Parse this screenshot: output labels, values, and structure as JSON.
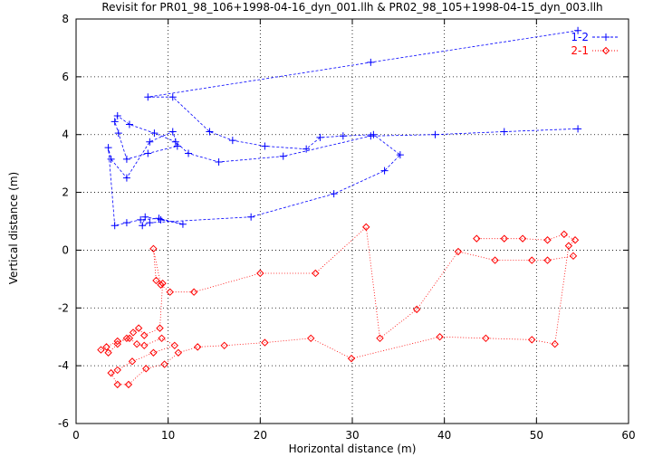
{
  "chart_data": {
    "type": "scatter",
    "title": "Revisit for PR01_98_106+1998-04-16_dyn_001.llh & PR02_98_105+1998-04-15_dyn_003.llh",
    "xlabel": "Horizontal distance (m)",
    "ylabel": "Vertical distance (m)",
    "xlim": [
      0,
      60
    ],
    "ylim": [
      -6,
      8
    ],
    "xticks": [
      "0",
      "10",
      "20",
      "30",
      "40",
      "50",
      "60"
    ],
    "yticks": [
      "-6",
      "-4",
      "-2",
      "0",
      "2",
      "4",
      "6",
      "8"
    ],
    "grid": true,
    "legend_position": "top-right",
    "series": [
      {
        "name": "1-2",
        "color": "#0000ff",
        "marker": "plus",
        "line": "dashed",
        "x": [
          54.5,
          32,
          7.8,
          10.5,
          14.5,
          17,
          20.5,
          25,
          26.5,
          29,
          32.3,
          35.2,
          33.5,
          28,
          19,
          8,
          7.2,
          7.5,
          9.2,
          11.6,
          9,
          7,
          5.5,
          4.2,
          3.5,
          3.8,
          5.5,
          8,
          10.5,
          11,
          7.8,
          5.5,
          4.6,
          4.2,
          4.5,
          5.8,
          8.5,
          10.8,
          12.2,
          15.5,
          22.5,
          32,
          39,
          46.5,
          54.5
        ],
        "y": [
          7.6,
          6.5,
          5.3,
          5.3,
          4.1,
          3.8,
          3.6,
          3.5,
          3.9,
          3.95,
          4.0,
          3.3,
          2.75,
          1.95,
          1.15,
          0.95,
          0.85,
          1.15,
          1.05,
          0.9,
          1.1,
          1.05,
          0.95,
          0.85,
          3.55,
          3.15,
          2.5,
          3.75,
          4.1,
          3.6,
          3.35,
          3.15,
          4.05,
          4.45,
          4.65,
          4.35,
          4.05,
          3.75,
          3.35,
          3.05,
          3.25,
          3.95,
          4.0,
          4.1,
          4.2
        ]
      },
      {
        "name": "2-1",
        "color": "#ff0000",
        "marker": "diamond",
        "line": "dotted",
        "x": [
          54,
          51.2,
          49.5,
          45.5,
          41.5,
          37,
          33,
          31.5,
          26,
          20,
          12.8,
          10.2,
          9.2,
          8.4,
          8.7,
          9.4,
          9.1,
          7.4,
          6.8,
          6.2,
          5.5,
          4.5,
          3.5,
          2.7,
          3.3,
          4.5,
          5.8,
          6.6,
          7.4,
          9.3,
          10.7,
          8.4,
          6.1,
          4.5,
          3.8,
          4.5,
          5.7,
          7.6,
          9.6,
          11.1,
          13.2,
          16.1,
          20.5,
          25.5,
          29.9,
          39.5,
          44.5,
          49.5,
          52,
          53.5,
          54.2,
          53,
          51.2,
          48.5,
          46.5,
          43.5
        ],
        "y": [
          -0.2,
          -0.35,
          -0.35,
          -0.35,
          -0.05,
          -2.05,
          -3.05,
          0.8,
          -0.8,
          -0.8,
          -1.45,
          -1.45,
          -1.2,
          0.05,
          -1.05,
          -1.15,
          -2.7,
          -2.95,
          -2.7,
          -2.85,
          -3.05,
          -3.25,
          -3.55,
          -3.45,
          -3.35,
          -3.15,
          -3.05,
          -3.25,
          -3.3,
          -3.05,
          -3.3,
          -3.55,
          -3.85,
          -4.15,
          -4.25,
          -4.65,
          -4.65,
          -4.1,
          -3.95,
          -3.55,
          -3.35,
          -3.3,
          -3.2,
          -3.05,
          -3.75,
          -3.0,
          -3.05,
          -3.1,
          -3.25,
          0.15,
          0.35,
          0.55,
          0.35,
          0.4,
          0.4,
          0.4
        ]
      }
    ]
  }
}
